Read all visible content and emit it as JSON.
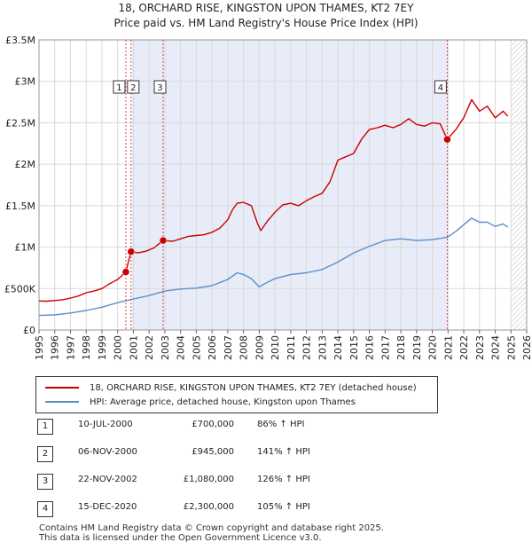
{
  "chart_data": {
    "type": "line",
    "title": "18, ORCHARD RISE, KINGSTON UPON THAMES, KT2 7EY",
    "subtitle": "Price paid vs. HM Land Registry's House Price Index (HPI)",
    "xlim": [
      1995,
      2026
    ],
    "ylim": [
      0,
      3500000
    ],
    "x_ticks": [
      1995,
      1996,
      1997,
      1998,
      1999,
      2000,
      2001,
      2002,
      2003,
      2004,
      2005,
      2006,
      2007,
      2008,
      2009,
      2010,
      2011,
      2012,
      2013,
      2014,
      2015,
      2016,
      2017,
      2018,
      2019,
      2020,
      2021,
      2022,
      2023,
      2024,
      2025,
      2026
    ],
    "y_ticks": [
      {
        "value": 0,
        "label": "£0"
      },
      {
        "value": 500000,
        "label": "£500K"
      },
      {
        "value": 1000000,
        "label": "£1M"
      },
      {
        "value": 1500000,
        "label": "£1.5M"
      },
      {
        "value": 2000000,
        "label": "£2M"
      },
      {
        "value": 2500000,
        "label": "£2.5M"
      },
      {
        "value": 3000000,
        "label": "£3M"
      },
      {
        "value": 3500000,
        "label": "£3.5M"
      }
    ],
    "shaded_period": [
      2000.9,
      2020.95
    ],
    "future_hatch_from": 2025.0,
    "series": [
      {
        "name": "18, ORCHARD RISE, KINGSTON UPON THAMES, KT2 7EY (detached house)",
        "color": "#cc0000",
        "points": [
          [
            1995.0,
            350000
          ],
          [
            1995.5,
            348000
          ],
          [
            1996.0,
            355000
          ],
          [
            1996.5,
            365000
          ],
          [
            1997.0,
            385000
          ],
          [
            1997.5,
            410000
          ],
          [
            1998.0,
            450000
          ],
          [
            1998.5,
            470000
          ],
          [
            1999.0,
            500000
          ],
          [
            1999.5,
            560000
          ],
          [
            2000.0,
            610000
          ],
          [
            2000.52,
            700000
          ],
          [
            2000.85,
            945000
          ],
          [
            2001.3,
            930000
          ],
          [
            2001.8,
            950000
          ],
          [
            2002.3,
            990000
          ],
          [
            2002.89,
            1080000
          ],
          [
            2003.5,
            1070000
          ],
          [
            2004.0,
            1100000
          ],
          [
            2004.5,
            1130000
          ],
          [
            2005.0,
            1140000
          ],
          [
            2005.5,
            1150000
          ],
          [
            2006.0,
            1180000
          ],
          [
            2006.5,
            1230000
          ],
          [
            2007.0,
            1330000
          ],
          [
            2007.3,
            1450000
          ],
          [
            2007.6,
            1530000
          ],
          [
            2008.0,
            1540000
          ],
          [
            2008.5,
            1500000
          ],
          [
            2008.9,
            1280000
          ],
          [
            2009.1,
            1200000
          ],
          [
            2009.5,
            1310000
          ],
          [
            2010.0,
            1420000
          ],
          [
            2010.5,
            1510000
          ],
          [
            2011.0,
            1530000
          ],
          [
            2011.5,
            1500000
          ],
          [
            2012.0,
            1560000
          ],
          [
            2012.5,
            1610000
          ],
          [
            2013.0,
            1650000
          ],
          [
            2013.5,
            1790000
          ],
          [
            2014.0,
            2050000
          ],
          [
            2014.5,
            2090000
          ],
          [
            2015.0,
            2130000
          ],
          [
            2015.5,
            2300000
          ],
          [
            2016.0,
            2420000
          ],
          [
            2016.5,
            2440000
          ],
          [
            2017.0,
            2470000
          ],
          [
            2017.5,
            2440000
          ],
          [
            2018.0,
            2480000
          ],
          [
            2018.5,
            2550000
          ],
          [
            2019.0,
            2480000
          ],
          [
            2019.5,
            2460000
          ],
          [
            2020.0,
            2500000
          ],
          [
            2020.5,
            2490000
          ],
          [
            2020.95,
            2300000
          ],
          [
            2021.5,
            2420000
          ],
          [
            2022.0,
            2560000
          ],
          [
            2022.5,
            2780000
          ],
          [
            2023.0,
            2640000
          ],
          [
            2023.5,
            2700000
          ],
          [
            2024.0,
            2560000
          ],
          [
            2024.5,
            2640000
          ],
          [
            2024.8,
            2580000
          ]
        ]
      },
      {
        "name": "HPI: Average price, detached house, Kingston upon Thames",
        "color": "#5b8fc9",
        "points": [
          [
            1995.0,
            175000
          ],
          [
            1996.0,
            182000
          ],
          [
            1997.0,
            205000
          ],
          [
            1998.0,
            235000
          ],
          [
            1999.0,
            275000
          ],
          [
            2000.0,
            330000
          ],
          [
            2001.0,
            375000
          ],
          [
            2002.0,
            415000
          ],
          [
            2003.0,
            470000
          ],
          [
            2004.0,
            495000
          ],
          [
            2005.0,
            505000
          ],
          [
            2006.0,
            535000
          ],
          [
            2007.0,
            610000
          ],
          [
            2007.6,
            690000
          ],
          [
            2008.0,
            670000
          ],
          [
            2008.5,
            620000
          ],
          [
            2009.0,
            520000
          ],
          [
            2009.5,
            575000
          ],
          [
            2010.0,
            620000
          ],
          [
            2011.0,
            670000
          ],
          [
            2012.0,
            690000
          ],
          [
            2013.0,
            730000
          ],
          [
            2014.0,
            820000
          ],
          [
            2015.0,
            930000
          ],
          [
            2016.0,
            1010000
          ],
          [
            2017.0,
            1080000
          ],
          [
            2018.0,
            1100000
          ],
          [
            2019.0,
            1080000
          ],
          [
            2020.0,
            1090000
          ],
          [
            2020.95,
            1120000
          ],
          [
            2021.5,
            1190000
          ],
          [
            2022.0,
            1270000
          ],
          [
            2022.5,
            1350000
          ],
          [
            2023.0,
            1300000
          ],
          [
            2023.5,
            1300000
          ],
          [
            2024.0,
            1250000
          ],
          [
            2024.5,
            1280000
          ],
          [
            2024.8,
            1240000
          ]
        ]
      }
    ],
    "markers": [
      {
        "label": "1",
        "x": 2000.52,
        "y": 700000
      },
      {
        "label": "2",
        "x": 2000.85,
        "y": 945000
      },
      {
        "label": "3",
        "x": 2002.89,
        "y": 1080000
      },
      {
        "label": "4",
        "x": 2020.95,
        "y": 2300000
      }
    ]
  },
  "legend": {
    "property": "18, ORCHARD RISE, KINGSTON UPON THAMES, KT2 7EY (detached house)",
    "hpi": "HPI: Average price, detached house, Kingston upon Thames"
  },
  "sales": [
    {
      "num": "1",
      "date": "10-JUL-2000",
      "price": "£700,000",
      "hpi": "86% ↑ HPI"
    },
    {
      "num": "2",
      "date": "06-NOV-2000",
      "price": "£945,000",
      "hpi": "141% ↑ HPI"
    },
    {
      "num": "3",
      "date": "22-NOV-2002",
      "price": "£1,080,000",
      "hpi": "126% ↑ HPI"
    },
    {
      "num": "4",
      "date": "15-DEC-2020",
      "price": "£2,300,000",
      "hpi": "105% ↑ HPI"
    }
  ],
  "footer": {
    "line1": "Contains HM Land Registry data © Crown copyright and database right 2025.",
    "line2": "This data is licensed under the Open Government Licence v3.0."
  }
}
